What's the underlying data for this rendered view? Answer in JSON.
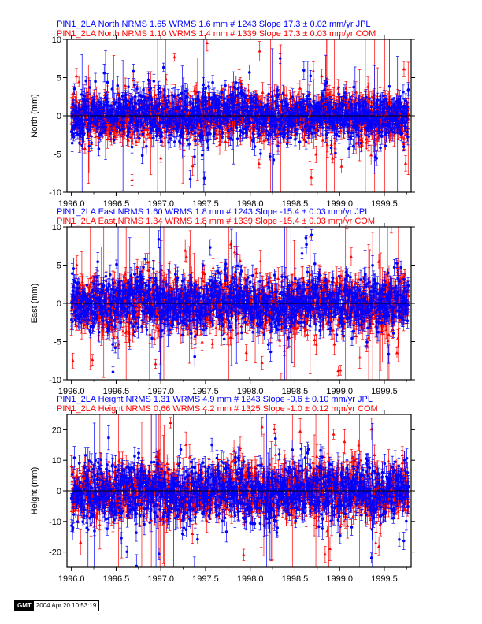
{
  "colors": {
    "jpl": "#0000ff",
    "com": "#ff0000",
    "axis": "#000000"
  },
  "chart_data": [
    {
      "type": "scatter",
      "title_lines": [
        {
          "text": "PIN1_2LA North NRMS 1.65 WRMS  1.6 mm # 1243 Slope   17.3 ±  0.02 mm/yr JPL",
          "color": "#0000ff"
        },
        {
          "text": "PIN1_2LA North NRMS 1.10 WRMS  1.4 mm # 1339 Slope   17.3 ±  0.03 mm/yr COM",
          "color": "#ff0000"
        }
      ],
      "ylabel": "North (mm)",
      "xlim": [
        1995.95,
        1999.8
      ],
      "ylim": [
        -10,
        10
      ],
      "xticks": [
        1996.0,
        1996.5,
        1997.0,
        1997.5,
        1998.0,
        1998.5,
        1999.0,
        1999.5
      ],
      "xtick_labels": [
        "1996.0",
        "1996.5",
        "1997.0",
        "1997.5",
        "1998.0",
        "1998.5",
        "1999.0",
        "1999.5"
      ],
      "yticks": [
        -10,
        -5,
        0,
        5,
        10
      ],
      "ytick_labels": [
        "-10",
        "-5",
        "0",
        "5",
        "10"
      ],
      "zero_line": true,
      "series": [
        {
          "name": "COM",
          "color": "#ff0000",
          "marker": "triangle",
          "count": 1339,
          "seed": 11,
          "x_end": 1999.77,
          "spread": 1.4,
          "err": 1.0,
          "outlier_rate": 0.035,
          "err_outlier_rate": 0.02
        },
        {
          "name": "JPL",
          "color": "#0000ff",
          "marker": "circle",
          "count": 1243,
          "seed": 23,
          "x_end": 1999.77,
          "spread": 1.6,
          "err": 0.9,
          "outlier_rate": 0.02,
          "err_outlier_rate": 0.01
        }
      ]
    },
    {
      "type": "scatter",
      "title_lines": [
        {
          "text": "PIN1_2LA East NRMS 1.60 WRMS  1.8 mm # 1243 Slope  -15.4 ±  0.03 mm/yr JPL",
          "color": "#0000ff"
        },
        {
          "text": "PIN1_2LA East NRMS 1.34 WRMS  1.8 mm # 1339 Slope  -15.4 ±  0.03 mm/yr COM",
          "color": "#ff0000"
        }
      ],
      "ylabel": "East (mm)",
      "xlim": [
        1995.95,
        1999.8
      ],
      "ylim": [
        -10,
        10
      ],
      "xticks": [
        1996.0,
        1996.5,
        1997.0,
        1997.5,
        1998.0,
        1998.5,
        1999.0,
        1999.5
      ],
      "xtick_labels": [
        "1996.0",
        "1996.5",
        "1997.0",
        "1997.5",
        "1998.0",
        "1998.5",
        "1999.0",
        "1999.5"
      ],
      "yticks": [
        -10,
        -5,
        0,
        5,
        10
      ],
      "ytick_labels": [
        "-10",
        "-5",
        "0",
        "5",
        "10"
      ],
      "zero_line": true,
      "series": [
        {
          "name": "COM",
          "color": "#ff0000",
          "marker": "triangle",
          "count": 1339,
          "seed": 37,
          "x_end": 1999.77,
          "spread": 1.8,
          "err": 1.1,
          "outlier_rate": 0.04,
          "err_outlier_rate": 0.025
        },
        {
          "name": "JPL",
          "color": "#0000ff",
          "marker": "circle",
          "count": 1243,
          "seed": 41,
          "x_end": 1999.77,
          "spread": 1.8,
          "err": 1.0,
          "outlier_rate": 0.03,
          "err_outlier_rate": 0.01
        }
      ]
    },
    {
      "type": "scatter",
      "title_lines": [
        {
          "text": "PIN1_2LA Height NRMS 1.31 WRMS  4.9 mm # 1243 Slope   -0.6 ±  0.10 mm/yr JPL",
          "color": "#0000ff"
        },
        {
          "text": "PIN1_2LA Height NRMS 0.66 WRMS  4.2 mm # 1325 Slope   -1.0 ±  0.12 mm/yr COM",
          "color": "#ff0000"
        }
      ],
      "ylabel": "Height (mm)",
      "xlim": [
        1995.95,
        1999.8
      ],
      "ylim": [
        -25,
        25
      ],
      "xticks": [
        1996.0,
        1996.5,
        1997.0,
        1997.5,
        1998.0,
        1998.5,
        1999.0,
        1999.5
      ],
      "xtick_labels": [
        "1996.0",
        "1996.5",
        "1997.0",
        "1997.5",
        "1998.0",
        "1998.5",
        "1999.0",
        "1999.5"
      ],
      "yticks": [
        -20,
        -10,
        0,
        10,
        20
      ],
      "ytick_labels": [
        "-20",
        "-10",
        "0",
        "10",
        "20"
      ],
      "zero_line": true,
      "series": [
        {
          "name": "COM",
          "color": "#ff0000",
          "marker": "triangle",
          "count": 1325,
          "seed": 53,
          "x_end": 1999.77,
          "spread": 4.2,
          "err": 3.0,
          "outlier_rate": 0.03,
          "err_outlier_rate": 0.02
        },
        {
          "name": "JPL",
          "color": "#0000ff",
          "marker": "circle",
          "count": 1243,
          "seed": 67,
          "x_end": 1999.77,
          "spread": 4.9,
          "err": 2.8,
          "outlier_rate": 0.025,
          "err_outlier_rate": 0.01
        }
      ]
    }
  ],
  "footer": {
    "logo": "GMT",
    "timestamp": "2004 Apr 20 10:53:19"
  }
}
